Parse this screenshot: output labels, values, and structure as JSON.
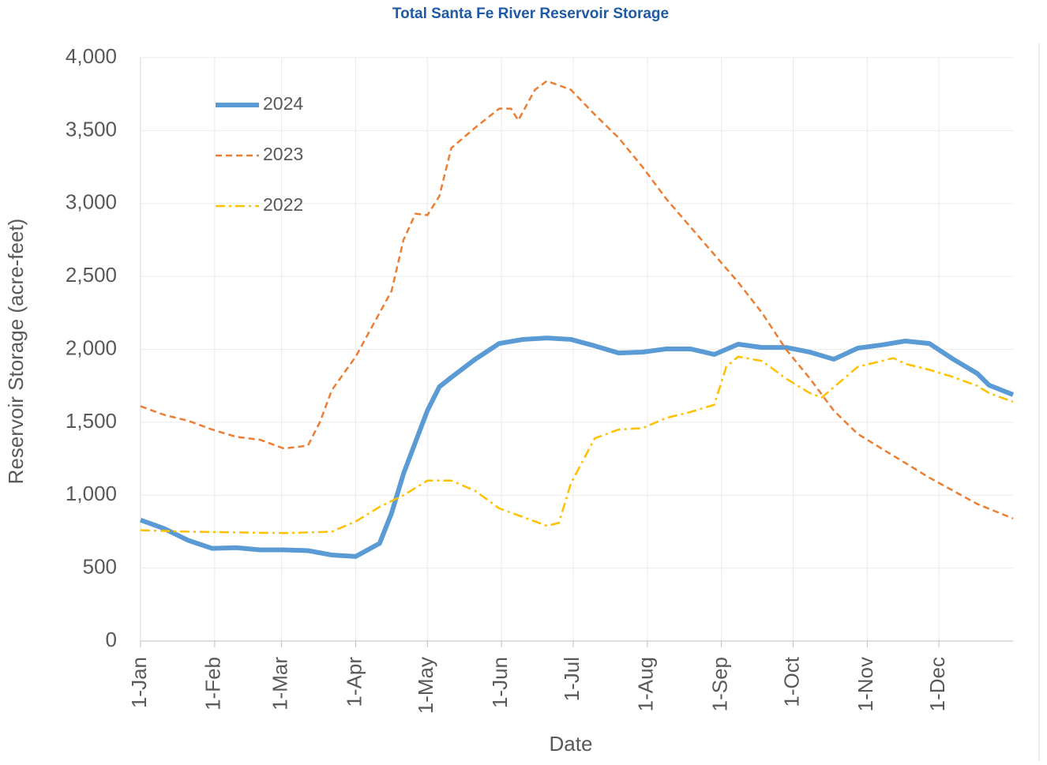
{
  "chart_data": {
    "type": "line",
    "title": "Total Santa Fe River Reservoir Storage",
    "xlabel": "Date",
    "ylabel": "Reservoir Storage (acre-feet)",
    "xlim": [
      0,
      365
    ],
    "xticks": [
      {
        "value": 0,
        "label": "1-Jan"
      },
      {
        "value": 31,
        "label": "1-Feb"
      },
      {
        "value": 59,
        "label": "1-Mar"
      },
      {
        "value": 90,
        "label": "1-Apr"
      },
      {
        "value": 120,
        "label": "1-May"
      },
      {
        "value": 151,
        "label": "1-Jun"
      },
      {
        "value": 181,
        "label": "1-Jul"
      },
      {
        "value": 212,
        "label": "1-Aug"
      },
      {
        "value": 243,
        "label": "1-Sep"
      },
      {
        "value": 273,
        "label": "1-Oct"
      },
      {
        "value": 304,
        "label": "1-Nov"
      },
      {
        "value": 334,
        "label": "1-Dec"
      }
    ],
    "ylim": [
      0,
      4000
    ],
    "yticks": [
      0,
      500,
      {
        "value": 1000,
        "label": "1,000"
      },
      {
        "value": 1500,
        "label": "1,500"
      },
      {
        "value": 2000,
        "label": "2,000"
      },
      {
        "value": 2500,
        "label": "2,500"
      },
      {
        "value": 3000,
        "label": "3,000"
      },
      {
        "value": 3500,
        "label": "3,500"
      },
      {
        "value": 4000,
        "label": "4,000"
      }
    ],
    "grid": true,
    "legend": "upper left",
    "series": [
      {
        "name": "2024",
        "color": "#5b9bd5",
        "style": "solid",
        "width": 6,
        "x": [
          0,
          10,
          20,
          30,
          40,
          50,
          60,
          70,
          80,
          90,
          100,
          105,
          110,
          115,
          120,
          125,
          130,
          140,
          150,
          160,
          170,
          180,
          190,
          200,
          210,
          220,
          230,
          240,
          250,
          260,
          270,
          280,
          290,
          295,
          300,
          310,
          320,
          330,
          340,
          350,
          355,
          365
        ],
        "values": [
          830,
          770,
          690,
          635,
          640,
          625,
          625,
          620,
          590,
          580,
          670,
          877,
          1147,
          1364,
          1580,
          1743,
          1808,
          1932,
          2040,
          2068,
          2078,
          2068,
          2024,
          1975,
          1981,
          2003,
          2003,
          1965,
          2035,
          2013,
          2013,
          1981,
          1932,
          1970,
          2008,
          2030,
          2057,
          2040,
          1932,
          1835,
          1754,
          1689
        ]
      },
      {
        "name": "2023",
        "color": "#ed7d31",
        "style": "dashed",
        "width": 2.5,
        "x": [
          0,
          10,
          20,
          30,
          40,
          50,
          60,
          70,
          75,
          80,
          90,
          100,
          105,
          110,
          115,
          120,
          125,
          130,
          140,
          150,
          155,
          158,
          165,
          170,
          180,
          190,
          200,
          210,
          220,
          230,
          240,
          250,
          260,
          270,
          280,
          290,
          300,
          310,
          320,
          330,
          340,
          350,
          365
        ],
        "values": [
          1610,
          1550,
          1510,
          1450,
          1400,
          1380,
          1320,
          1340,
          1500,
          1720,
          1950,
          2250,
          2400,
          2750,
          2930,
          2920,
          3050,
          3380,
          3520,
          3650,
          3650,
          3570,
          3780,
          3840,
          3780,
          3610,
          3450,
          3250,
          3030,
          2840,
          2650,
          2460,
          2250,
          2000,
          1800,
          1580,
          1420,
          1320,
          1220,
          1120,
          1030,
          940,
          840
        ]
      },
      {
        "name": "2022",
        "color": "#ffc000",
        "style": "dashdot",
        "width": 2.5,
        "x": [
          0,
          20,
          40,
          60,
          80,
          90,
          100,
          110,
          120,
          130,
          140,
          150,
          160,
          170,
          175,
          180,
          190,
          200,
          210,
          220,
          230,
          240,
          245,
          250,
          260,
          270,
          280,
          285,
          290,
          300,
          310,
          315,
          320,
          330,
          340,
          350,
          355,
          365
        ],
        "values": [
          760,
          750,
          745,
          740,
          750,
          820,
          920,
          1000,
          1100,
          1100,
          1030,
          910,
          850,
          790,
          810,
          1080,
          1390,
          1450,
          1460,
          1530,
          1570,
          1620,
          1880,
          1950,
          1920,
          1800,
          1700,
          1670,
          1740,
          1880,
          1920,
          1940,
          1900,
          1860,
          1810,
          1750,
          1700,
          1640
        ]
      }
    ]
  }
}
